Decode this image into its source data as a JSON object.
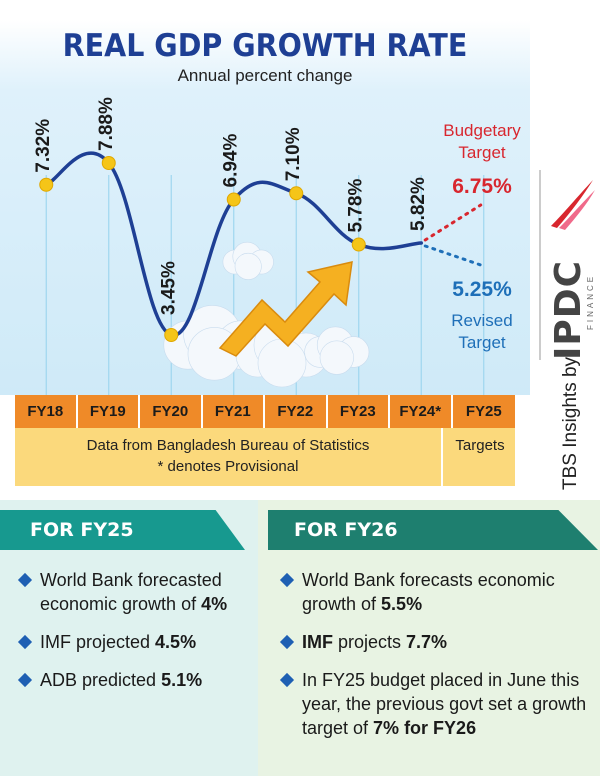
{
  "title": "REAL GDP GROWTH RATE",
  "subtitle": "Annual percent change",
  "chart_data": {
    "type": "line",
    "title": "REAL GDP GROWTH RATE",
    "subtitle": "Annual percent change",
    "categories": [
      "FY18",
      "FY19",
      "FY20",
      "FY21",
      "FY22",
      "FY23",
      "FY24*",
      "FY25"
    ],
    "series": [
      {
        "values": [
          7.32,
          7.88,
          3.45,
          6.94,
          7.1,
          5.78,
          5.82,
          null
        ],
        "labels": [
          "7.32%",
          "7.88%",
          "3.45%",
          "6.94%",
          "7.10%",
          "5.78%",
          "5.82%",
          null
        ],
        "color": "#1e3f94"
      }
    ],
    "targets": [
      {
        "category": "FY25",
        "name": "Budgetary Target",
        "value": 6.75,
        "label": "6.75%",
        "color": "#d8262e"
      },
      {
        "category": "FY25",
        "name": "Revised Target",
        "value": 5.25,
        "label": "5.25%",
        "color": "#1e6fb8"
      }
    ],
    "ylim": [
      2.5,
      8.5
    ],
    "grid": false
  },
  "labels": {
    "budgetary_target": "Budgetary Target",
    "revised_target": "Revised Target",
    "budgetary_value": "6.75%",
    "revised_value": "5.25%"
  },
  "footer": {
    "source": "Data from Bangladesh Bureau of Statistics",
    "note": "* denotes Provisional",
    "targets": "Targets"
  },
  "brand": {
    "credit": "TBS Insights by",
    "logo": "IPDC",
    "logo_sub": "FINANCE"
  },
  "fy25": {
    "heading": "FOR FY25",
    "items": [
      {
        "text": "World Bank forecasted economic growth of ",
        "bold": "4%"
      },
      {
        "text": "IMF projected ",
        "bold": "4.5%"
      },
      {
        "text": "ADB predicted ",
        "bold": "5.1%"
      }
    ]
  },
  "fy26": {
    "heading": "FOR FY26",
    "items": [
      {
        "text": "World Bank forecasts economic growth of ",
        "bold": "5.5%",
        "after": ""
      },
      {
        "pre_bold": "IMF",
        "text": " projects ",
        "bold": "7.7%",
        "after": ""
      },
      {
        "text": "In FY25 budget placed in June this year, the previous govt set a growth target of ",
        "bold": "7% for FY26",
        "after": ""
      }
    ]
  },
  "colors": {
    "title": "#1e3f94",
    "line": "#1e3f94",
    "marker": "#f5c518",
    "fy_bar": "#ef8a28",
    "info_bar": "#fbd97c",
    "budget": "#d8262e",
    "revised": "#1e6fb8",
    "bullet": "#1e5fb3",
    "head_left": "#17998f",
    "head_right": "#1e7f6f"
  }
}
